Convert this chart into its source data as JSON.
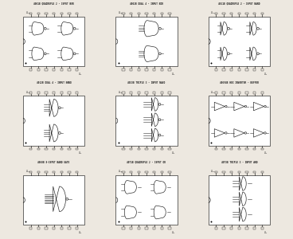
{
  "bg_color": "#ede8e0",
  "line_color": "#1a1a1a",
  "title_color": "#1a1a1a",
  "chips": [
    {
      "title": "4001B QUADRUPLE 2 - INPUT NOR",
      "col": 0,
      "row": 0,
      "type": "quad2nor"
    },
    {
      "title": "4002B DUAL 4 - INPUT NOR",
      "col": 1,
      "row": 0,
      "type": "dual4nor"
    },
    {
      "title": "4011B QUADRUPLE 2 - INPUT NAND",
      "col": 2,
      "row": 0,
      "type": "quad2nand"
    },
    {
      "title": "4012B DUAL 4 - INPUT NAND",
      "col": 0,
      "row": 1,
      "type": "dual4nand"
    },
    {
      "title": "4023B TRIPLE 3 - INPUT NAND",
      "col": 1,
      "row": 1,
      "type": "triple3nand"
    },
    {
      "title": "4069UB HEX INVERTER - BUFFER",
      "col": 2,
      "row": 1,
      "type": "hexinv"
    },
    {
      "title": "4068B 8-INPUT NAND GATE",
      "col": 0,
      "row": 2,
      "type": "8nand"
    },
    {
      "title": "4071B QUADRUPLE 2 - INPUT OR",
      "col": 1,
      "row": 2,
      "type": "quad2or"
    },
    {
      "title": "4073B TRIPLE 3 - INPUT AND",
      "col": 2,
      "row": 2,
      "type": "triple3and"
    }
  ]
}
